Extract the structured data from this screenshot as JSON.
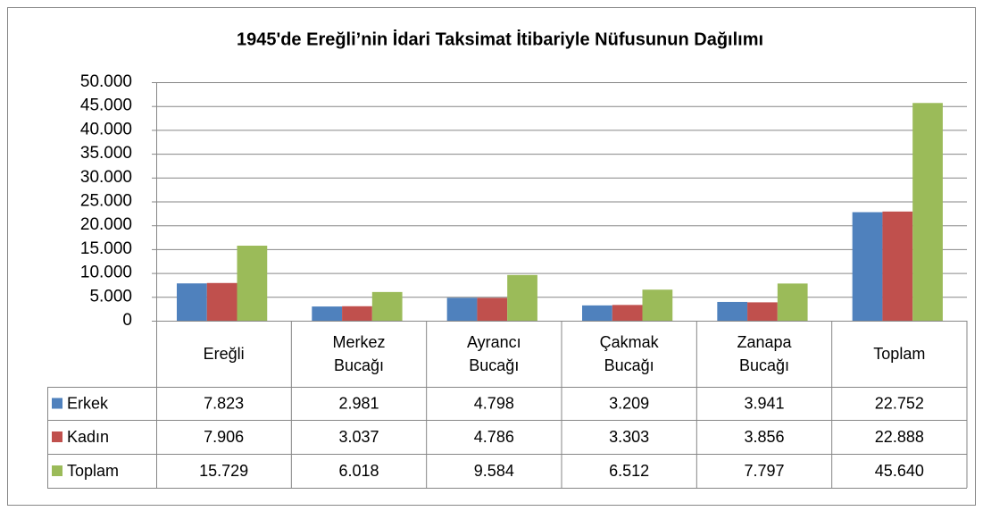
{
  "chart_data": {
    "type": "bar",
    "title": "1945'de Ereğli’nin İdari Taksimat İtibariyle Nüfusunun Dağılımı",
    "categories": [
      "Ereğli",
      "Merkez Bucağı",
      "Ayrancı Bucağı",
      "Çakmak Bucağı",
      "Zanapa Bucağı",
      "Toplam"
    ],
    "series": [
      {
        "name": "Erkek",
        "color": "#4f81bd",
        "values": [
          7823,
          2981,
          4798,
          3209,
          3941,
          22752
        ],
        "value_labels": [
          "7.823",
          "2.981",
          "4.798",
          "3.209",
          "3.941",
          "22.752"
        ]
      },
      {
        "name": "Kadın",
        "color": "#c0504d",
        "values": [
          7906,
          3037,
          4786,
          3303,
          3856,
          22888
        ],
        "value_labels": [
          "7.906",
          "3.037",
          "4.786",
          "3.303",
          "3.856",
          "22.888"
        ]
      },
      {
        "name": "Toplam",
        "color": "#9bbb59",
        "values": [
          15729,
          6018,
          9584,
          6512,
          7797,
          45640
        ],
        "value_labels": [
          "15.729",
          "6.018",
          "9.584",
          "6.512",
          "7.797",
          "45.640"
        ]
      }
    ],
    "ylim": [
      0,
      50000
    ],
    "yticks": [
      0,
      {
        "value": 5000,
        "label": "5.000"
      },
      {
        "value": 10000,
        "label": "10.000"
      },
      {
        "value": 15000,
        "label": "15.000"
      },
      {
        "value": 20000,
        "label": "20.000"
      },
      {
        "value": 25000,
        "label": "25.000"
      },
      {
        "value": 30000,
        "label": "30.000"
      },
      {
        "value": 35000,
        "label": "35.000"
      },
      {
        "value": 40000,
        "label": "40.000"
      },
      {
        "value": 45000,
        "label": "45.000"
      },
      {
        "value": 50000,
        "label": "50.000"
      }
    ],
    "grid": true
  }
}
